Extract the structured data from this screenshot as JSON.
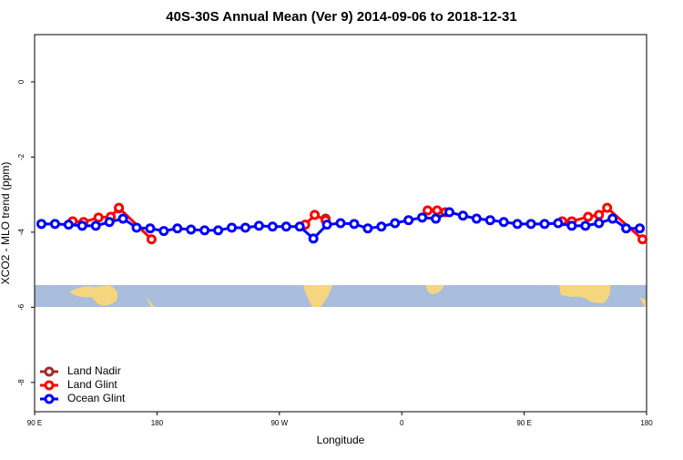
{
  "chart_data": {
    "type": "line",
    "title": "40S-30S Annual Mean (Ver 9)   2014-09-06 to 2018-12-31",
    "xlabel": "Longitude",
    "ylabel": "XCO2 - MLO trend (ppm)",
    "xlim": [
      90,
      540
    ],
    "xticks": [
      {
        "value": 90,
        "label": "90 E"
      },
      {
        "value": 180,
        "label": "180"
      },
      {
        "value": 270,
        "label": "90 W"
      },
      {
        "value": 360,
        "label": "0"
      },
      {
        "value": 450,
        "label": "90 E"
      },
      {
        "value": 540,
        "label": "180"
      }
    ],
    "ylim": [
      -8.78,
      1.26
    ],
    "yticks": [
      0,
      -2,
      -4,
      -6,
      -8
    ],
    "legend": "bottom-left",
    "series": [
      {
        "name": "Land Nadir",
        "color": "#a52a2a",
        "x": [
          152,
          null,
          304
        ],
        "values": [
          -3.37,
          null,
          -3.64
        ]
      },
      {
        "name": "Land Glint",
        "color": "#ff0000",
        "x": [
          118,
          126,
          137,
          146,
          152,
          176,
          null,
          289,
          296,
          304,
          null,
          379,
          386,
          392,
          null,
          478,
          485,
          497,
          505,
          511,
          537
        ],
        "values": [
          -3.71,
          -3.73,
          -3.61,
          -3.59,
          -3.35,
          -4.19,
          null,
          -3.8,
          -3.54,
          -3.68,
          null,
          -3.42,
          -3.42,
          -3.47,
          null,
          -3.71,
          -3.71,
          -3.59,
          -3.54,
          -3.35,
          -4.19
        ]
      },
      {
        "name": "Ocean Glint",
        "color": "#0000ff",
        "x": [
          95,
          105,
          115,
          125,
          135,
          145,
          155,
          165,
          175,
          185,
          195,
          205,
          215,
          225,
          235,
          245,
          255,
          265,
          275,
          285,
          295,
          305,
          315,
          325,
          335,
          345,
          355,
          365,
          375,
          385,
          395,
          405,
          415,
          425,
          435,
          445,
          455,
          465,
          475,
          485,
          495,
          505,
          515,
          525,
          535
        ],
        "values": [
          -3.78,
          -3.78,
          -3.8,
          -3.83,
          -3.83,
          -3.73,
          -3.64,
          -3.88,
          -3.9,
          -3.97,
          -3.9,
          -3.93,
          -3.95,
          -3.95,
          -3.88,
          -3.88,
          -3.83,
          -3.85,
          -3.85,
          -3.85,
          -4.17,
          -3.8,
          -3.76,
          -3.78,
          -3.9,
          -3.85,
          -3.76,
          -3.68,
          -3.61,
          -3.64,
          -3.47,
          -3.56,
          -3.64,
          -3.68,
          -3.73,
          -3.78,
          -3.78,
          -3.78,
          -3.76,
          -3.83,
          -3.83,
          -3.76,
          -3.64,
          -3.9,
          -3.9
        ]
      }
    ]
  }
}
